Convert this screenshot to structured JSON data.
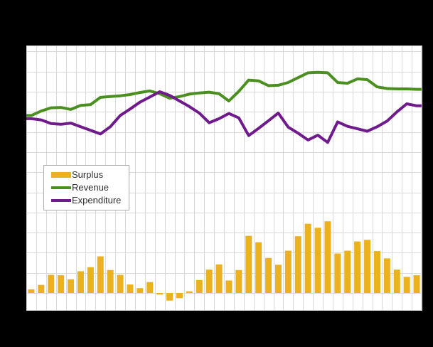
{
  "colors": {
    "page_background": "#000000",
    "plot_background": "#ffffff",
    "gridline": "#d9d9d9",
    "plot_border": "#d9d9d9",
    "legend_border": "#ababab",
    "legend_text": "#2e2e2e",
    "surplus": "#ecb11f",
    "revenue": "#4b8f20",
    "expenditure": "#701b8c"
  },
  "chart_data": {
    "type": "combo",
    "title": "",
    "xlabel": "",
    "ylabel": "",
    "x_tick_labels_visible": false,
    "y_tick_labels_visible": false,
    "grid": true,
    "legend_position": "inside-upper-left",
    "x": [
      1,
      2,
      3,
      4,
      5,
      6,
      7,
      8,
      9,
      10,
      11,
      12,
      13,
      14,
      15,
      16,
      17,
      18,
      19,
      20,
      21,
      22,
      23,
      24,
      25,
      26,
      27,
      28,
      29,
      30,
      31,
      32,
      33,
      34,
      35,
      36,
      37,
      38,
      39,
      40
    ],
    "y_units_per_gridline": 50,
    "ylim": [
      -45,
      615
    ],
    "series": [
      {
        "name": "Surplus",
        "type": "bar",
        "color": "#ecb11f",
        "values": [
          9,
          20,
          45,
          44,
          34,
          54,
          64,
          91,
          57,
          45,
          21,
          12,
          27,
          -4,
          -19,
          -13,
          4,
          32,
          58,
          71,
          31,
          57,
          142,
          126,
          87,
          70,
          105,
          141,
          172,
          162,
          178,
          98,
          105,
          128,
          132,
          104,
          86,
          58,
          40,
          44
        ]
      },
      {
        "name": "Revenue",
        "type": "line",
        "color": "#4b8f20",
        "values": [
          441,
          452,
          460,
          461,
          456,
          466,
          468,
          486,
          488,
          490,
          493,
          498,
          502,
          495,
          484,
          488,
          494,
          497,
          499,
          495,
          477,
          501,
          529,
          527,
          515,
          516,
          523,
          535,
          547,
          548,
          547,
          523,
          521,
          532,
          530,
          512,
          508,
          507,
          507,
          506
        ]
      },
      {
        "name": "Expenditure",
        "type": "line",
        "color": "#701b8c",
        "values": [
          433,
          430,
          421,
          419,
          422,
          413,
          404,
          395,
          413,
          441,
          457,
          474,
          487,
          500,
          491,
          477,
          463,
          447,
          423,
          433,
          446,
          435,
          391,
          409,
          428,
          447,
          412,
          397,
          380,
          392,
          374,
          425,
          414,
          408,
          402,
          413,
          427,
          450,
          470,
          465
        ]
      }
    ]
  }
}
